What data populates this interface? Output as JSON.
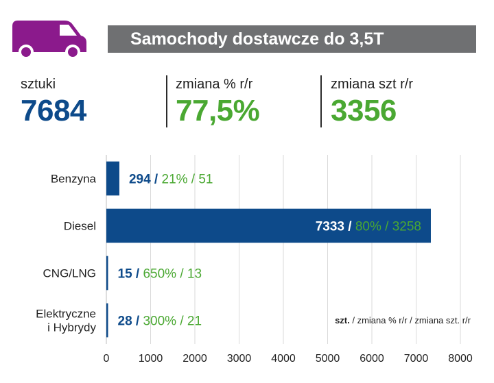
{
  "header": {
    "title": "Samochody dostawcze do 3,5T",
    "icon": "van-icon",
    "icon_color": "#8b1a8c"
  },
  "kpis": [
    {
      "label": "sztuki",
      "value": "7684",
      "color": "#0d4a8a"
    },
    {
      "label": "zmiana % r/r",
      "value": "77,5%",
      "color": "#4aa832"
    },
    {
      "label": "zmiana szt r/r",
      "value": "3356",
      "color": "#4aa832"
    }
  ],
  "chart_data": {
    "type": "bar",
    "orientation": "horizontal",
    "categories": [
      [
        "Benzyna"
      ],
      [
        "Diesel"
      ],
      [
        "CNG/LNG"
      ],
      [
        "Elektryczne",
        "i Hybrydy"
      ]
    ],
    "values": [
      294,
      7333,
      15,
      28
    ],
    "change_pct": [
      "21%",
      "80%",
      "650%",
      "300%"
    ],
    "change_units": [
      "51",
      "3258",
      "13",
      "21"
    ],
    "xlim": [
      0,
      8000
    ],
    "xticks": [
      0,
      1000,
      2000,
      3000,
      4000,
      5000,
      6000,
      7000,
      8000
    ],
    "grid": true,
    "legend": {
      "bold": "szt.",
      "rest": " / zmiana % r/r / zmiana szt. r/r"
    },
    "colors": {
      "bar": "#0d4a8a",
      "change": "#4aa832",
      "grid": "#d9d9d9"
    }
  }
}
